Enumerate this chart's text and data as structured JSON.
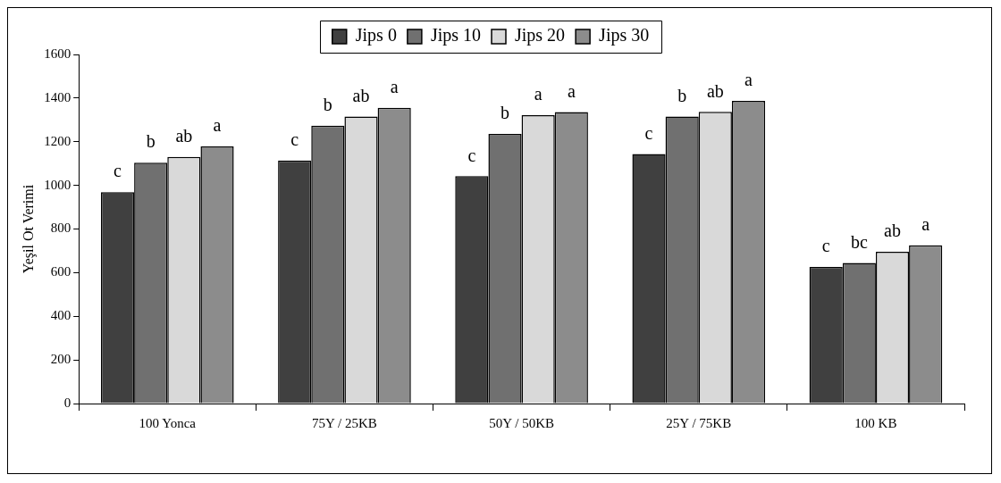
{
  "chart_data": {
    "type": "bar",
    "ylabel": "Yeşil Ot Verimi",
    "categories": [
      "100 Yonca",
      "75Y / 25KB",
      "50Y / 50KB",
      "25Y / 75KB",
      "100 KB"
    ],
    "series": [
      {
        "name": "Jips 0",
        "color": "#404040",
        "values": [
          969,
          1114,
          1042,
          1144,
          626
        ],
        "value_labels": [
          "c",
          "c",
          "c",
          "c",
          "c"
        ]
      },
      {
        "name": "Jips 10",
        "color": "#707070",
        "values": [
          1104,
          1274,
          1236,
          1316,
          644
        ],
        "value_labels": [
          "b",
          "b",
          "b",
          "b",
          "bc"
        ]
      },
      {
        "name": "Jips 20",
        "color": "#d9d9d9",
        "values": [
          1130,
          1316,
          1322,
          1337,
          696
        ],
        "value_labels": [
          "ab",
          "ab",
          "a",
          "ab",
          "ab"
        ]
      },
      {
        "name": "Jips 30",
        "color": "#8c8c8c",
        "values": [
          1179,
          1356,
          1336,
          1387,
          725
        ],
        "value_labels": [
          "a",
          "a",
          "a",
          "a",
          "a"
        ]
      }
    ],
    "ylim": [
      0,
      1600
    ],
    "yticks": [
      0,
      200,
      400,
      600,
      800,
      1000,
      1200,
      1400,
      1600
    ],
    "grid": false,
    "legend": "top"
  }
}
